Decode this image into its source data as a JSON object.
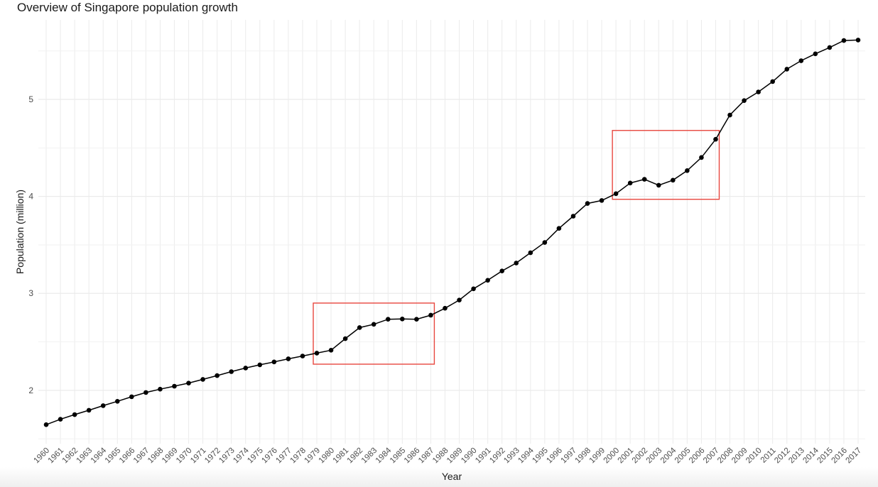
{
  "chart_data": {
    "type": "line",
    "title": "Overview of Singapore population growth",
    "xlabel": "Year",
    "ylabel": "Population (million)",
    "x": [
      "1960",
      "1961",
      "1962",
      "1963",
      "1964",
      "1965",
      "1966",
      "1967",
      "1968",
      "1969",
      "1970",
      "1971",
      "1972",
      "1973",
      "1974",
      "1975",
      "1976",
      "1977",
      "1978",
      "1979",
      "1980",
      "1981",
      "1982",
      "1983",
      "1984",
      "1985",
      "1986",
      "1987",
      "1988",
      "1989",
      "1990",
      "1991",
      "1992",
      "1993",
      "1994",
      "1995",
      "1996",
      "1997",
      "1998",
      "1999",
      "2000",
      "2001",
      "2002",
      "2003",
      "2004",
      "2005",
      "2006",
      "2007",
      "2008",
      "2009",
      "2010",
      "2011",
      "2012",
      "2013",
      "2014",
      "2015",
      "2016",
      "2017"
    ],
    "series": [
      {
        "values": [
          1.646,
          1.702,
          1.75,
          1.795,
          1.842,
          1.887,
          1.934,
          1.978,
          2.012,
          2.043,
          2.075,
          2.113,
          2.152,
          2.193,
          2.23,
          2.263,
          2.293,
          2.325,
          2.354,
          2.384,
          2.414,
          2.533,
          2.647,
          2.681,
          2.733,
          2.736,
          2.733,
          2.775,
          2.847,
          2.931,
          3.047,
          3.135,
          3.231,
          3.313,
          3.419,
          3.525,
          3.67,
          3.796,
          3.927,
          3.958,
          4.028,
          4.138,
          4.176,
          4.115,
          4.167,
          4.266,
          4.401,
          4.589,
          4.839,
          4.988,
          5.077,
          5.184,
          5.312,
          5.399,
          5.47,
          5.535,
          5.607,
          5.612
        ],
        "color": "#000000"
      }
    ],
    "yticks": [
      2,
      3,
      4,
      5
    ],
    "ylim": [
      1.45,
      5.82
    ],
    "grid": true,
    "highlight_boxes": [
      {
        "x_from": "1979",
        "x_to": "1987",
        "y_from": 2.27,
        "y_to": 2.9,
        "color": "#e8473f"
      },
      {
        "x_from": "2000",
        "x_to": "2007",
        "y_from": 3.97,
        "y_to": 4.68,
        "color": "#e8473f"
      }
    ],
    "colors": {
      "grid": "#ebebeb",
      "axis_text": "#4d4d4d",
      "axis_title": "#1a1a1a",
      "line": "#000000"
    }
  }
}
